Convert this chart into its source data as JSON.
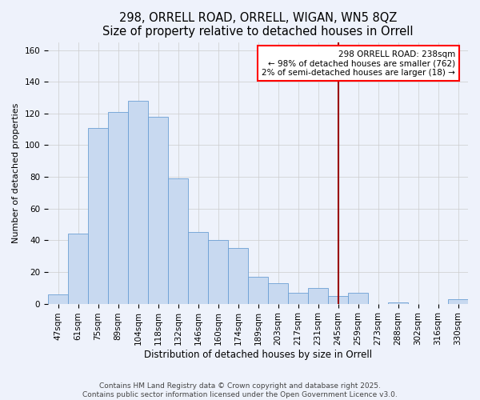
{
  "title": "298, ORRELL ROAD, ORRELL, WIGAN, WN5 8QZ",
  "subtitle": "Size of property relative to detached houses in Orrell",
  "xlabel": "Distribution of detached houses by size in Orrell",
  "ylabel": "Number of detached properties",
  "bar_labels": [
    "47sqm",
    "61sqm",
    "75sqm",
    "89sqm",
    "104sqm",
    "118sqm",
    "132sqm",
    "146sqm",
    "160sqm",
    "174sqm",
    "189sqm",
    "203sqm",
    "217sqm",
    "231sqm",
    "245sqm",
    "259sqm",
    "273sqm",
    "288sqm",
    "302sqm",
    "316sqm",
    "330sqm"
  ],
  "bar_values": [
    6,
    44,
    111,
    121,
    128,
    118,
    79,
    45,
    40,
    35,
    17,
    13,
    7,
    10,
    5,
    7,
    0,
    1,
    0,
    0,
    3
  ],
  "bar_color": "#c8d9f0",
  "bar_edge_color": "#6b9fd4",
  "background_color": "#eef2fb",
  "grid_color": "#cccccc",
  "vline_x_index": 14.0,
  "vline_color": "#990000",
  "legend_title": "298 ORRELL ROAD: 238sqm",
  "legend_line1": "← 98% of detached houses are smaller (762)",
  "legend_line2": "2% of semi-detached houses are larger (18) →",
  "ylim": [
    0,
    165
  ],
  "yticks": [
    0,
    20,
    40,
    60,
    80,
    100,
    120,
    140,
    160
  ],
  "footer1": "Contains HM Land Registry data © Crown copyright and database right 2025.",
  "footer2": "Contains public sector information licensed under the Open Government Licence v3.0.",
  "title_fontsize": 10.5,
  "xlabel_fontsize": 8.5,
  "ylabel_fontsize": 8,
  "tick_fontsize": 7.5,
  "footer_fontsize": 6.5,
  "legend_fontsize": 7.5
}
